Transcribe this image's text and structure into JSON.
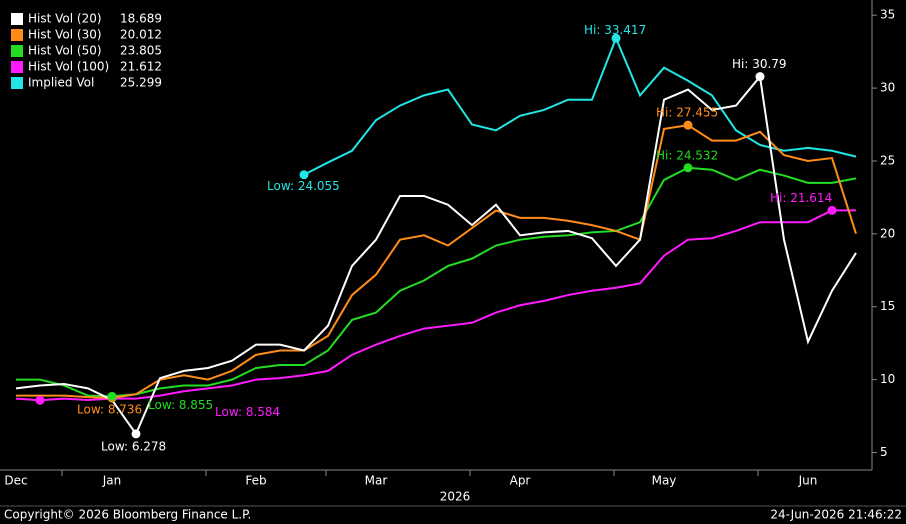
{
  "chart_data": {
    "type": "line",
    "categories": [
      "Dec",
      null,
      null,
      null,
      "Jan",
      null,
      null,
      null,
      null,
      null,
      "Feb",
      null,
      null,
      null,
      null,
      "Mar",
      null,
      null,
      null,
      null,
      null,
      "Apr",
      null,
      null,
      null,
      null,
      null,
      "May",
      null,
      null,
      null,
      null,
      null,
      "Jun",
      null,
      null
    ],
    "year_label": "2026",
    "ylim": [
      3.8,
      35.7
    ],
    "yticks": [
      5,
      10,
      15,
      20,
      25,
      30,
      35
    ],
    "series": [
      {
        "name": "Hist Vol (20)",
        "color": "#ffffff",
        "values": [
          9.4,
          9.6,
          9.7,
          9.4,
          8.6,
          6.278,
          10.1,
          10.6,
          10.8,
          11.3,
          12.4,
          12.4,
          12.0,
          13.7,
          17.8,
          19.6,
          22.6,
          22.6,
          22.0,
          20.6,
          22.0,
          19.9,
          20.1,
          20.2,
          19.7,
          17.8,
          19.6,
          29.2,
          29.9,
          28.5,
          28.8,
          30.79,
          19.6,
          12.6,
          16.1,
          18.689
        ]
      },
      {
        "name": "Hist Vol (30)",
        "color": "#ff8c1a",
        "values": [
          8.9,
          8.9,
          8.9,
          8.8,
          8.736,
          9.0,
          10.0,
          10.3,
          10.0,
          10.6,
          11.7,
          12.0,
          12.0,
          13.0,
          15.8,
          17.2,
          19.6,
          19.9,
          19.2,
          20.4,
          21.6,
          21.1,
          21.1,
          20.9,
          20.6,
          20.2,
          19.6,
          27.2,
          27.455,
          26.4,
          26.4,
          27.0,
          25.4,
          25.0,
          25.2,
          20.012
        ]
      },
      {
        "name": "Hist Vol (50)",
        "color": "#22dd22",
        "values": [
          10.0,
          10.0,
          9.6,
          8.9,
          8.855,
          9.0,
          9.4,
          9.6,
          9.6,
          10.0,
          10.8,
          11.0,
          11.0,
          12.0,
          14.1,
          14.6,
          16.1,
          16.8,
          17.8,
          18.3,
          19.2,
          19.6,
          19.8,
          19.9,
          20.1,
          20.2,
          20.8,
          23.7,
          24.532,
          24.4,
          23.7,
          24.4,
          24.0,
          23.5,
          23.5,
          23.805
        ]
      },
      {
        "name": "Hist Vol (100)",
        "color": "#ff1aff",
        "values": [
          8.7,
          8.584,
          8.7,
          8.6,
          8.7,
          8.7,
          8.9,
          9.2,
          9.4,
          9.6,
          10.0,
          10.1,
          10.3,
          10.6,
          11.7,
          12.4,
          13.0,
          13.5,
          13.7,
          13.9,
          14.6,
          15.1,
          15.4,
          15.8,
          16.1,
          16.3,
          16.6,
          18.5,
          19.6,
          19.7,
          20.2,
          20.8,
          20.8,
          20.8,
          21.614,
          21.612
        ]
      },
      {
        "name": "Implied Vol",
        "color": "#22e5e5",
        "values": [
          null,
          null,
          null,
          null,
          null,
          null,
          null,
          null,
          null,
          null,
          null,
          null,
          24.055,
          24.9,
          25.7,
          27.8,
          28.8,
          29.5,
          29.9,
          27.5,
          27.1,
          28.1,
          28.5,
          29.2,
          29.2,
          33.417,
          29.5,
          31.4,
          30.5,
          29.5,
          27.1,
          26.1,
          25.7,
          25.9,
          25.7,
          25.299
        ]
      }
    ],
    "markers": [
      {
        "series": 0,
        "point": 5,
        "label": "Low: 6.278"
      },
      {
        "series": 0,
        "point": 31,
        "label": "Hi: 30.79"
      },
      {
        "series": 1,
        "point": 4,
        "label": "Low: 8.736"
      },
      {
        "series": 1,
        "point": 28,
        "label": "Hi: 27.455"
      },
      {
        "series": 2,
        "point": 4,
        "label": "Low: 8.855"
      },
      {
        "series": 2,
        "point": 28,
        "label": "Hi: 24.532"
      },
      {
        "series": 3,
        "point": 1,
        "label": "Low: 8.584"
      },
      {
        "series": 3,
        "point": 34,
        "label": "Hi: 21.614"
      },
      {
        "series": 4,
        "point": 12,
        "label": "Low: 24.055"
      },
      {
        "series": 4,
        "point": 25,
        "label": "Hi: 33.417"
      }
    ],
    "footer_left": "Copyright© 2026 Bloomberg Finance L.P.",
    "footer_right": "24-Jun-2026 21:46:22"
  }
}
